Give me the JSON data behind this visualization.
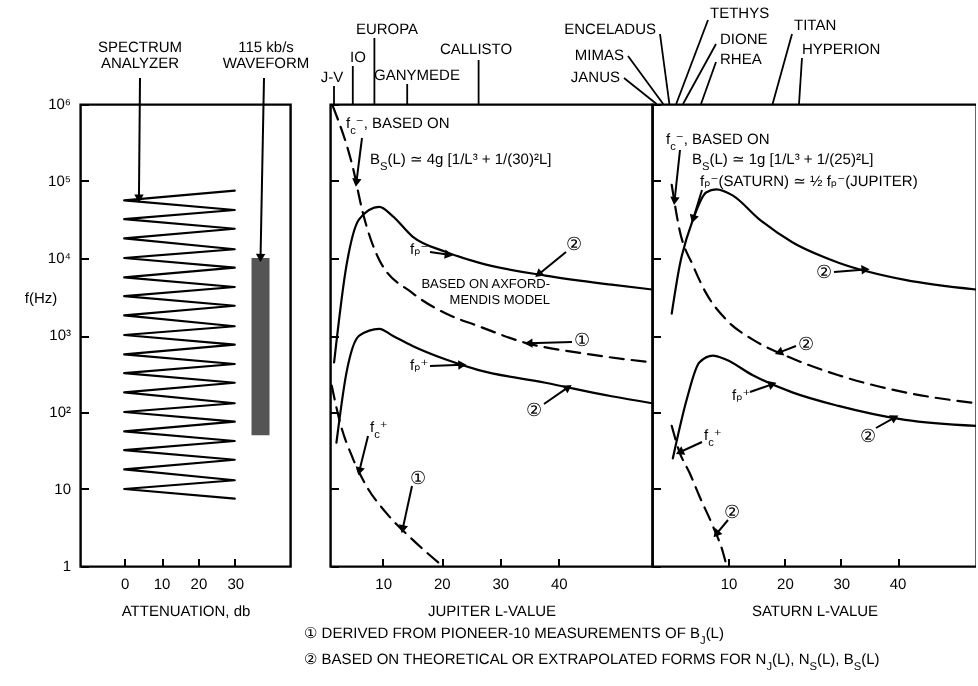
{
  "chart_data": [
    {
      "type": "line",
      "xlabel": "ATTENUATION, db",
      "ylabel": "f(Hz)",
      "xlim": [
        -12,
        45
      ],
      "ylim": [
        1,
        1000000
      ],
      "log": "y",
      "xticks": [
        0,
        10,
        20,
        30
      ],
      "yticks": [
        1,
        10,
        {
          "value": 100,
          "label": "10²"
        },
        {
          "value": 1000,
          "label": "10³"
        },
        {
          "value": 10000,
          "label": "10⁴"
        },
        {
          "value": 100000,
          "label": "10⁵"
        },
        {
          "value": 1000000,
          "label": "10⁶"
        }
      ],
      "series": [
        {
          "type": "line",
          "color": "#000000",
          "line_style": "solid",
          "x": [
            30,
            0,
            30,
            0,
            30,
            0,
            30,
            0,
            30,
            0,
            30,
            0,
            30,
            0,
            30,
            0,
            30,
            0,
            30,
            0,
            30,
            0,
            30,
            0,
            30,
            0,
            30,
            0,
            30,
            0,
            30,
            0,
            30
          ],
          "values": [
            75000,
            56000,
            42000,
            32000,
            24000,
            18000,
            13000,
            10000,
            7500,
            5600,
            4200,
            3200,
            2400,
            1800,
            1300,
            1000,
            750,
            560,
            420,
            320,
            240,
            180,
            130,
            100,
            75,
            56,
            42,
            32,
            24,
            18,
            13,
            10,
            7.5
          ]
        },
        {
          "type": "bar",
          "color": "#555555",
          "x": [
            37
          ],
          "base": [
            50
          ],
          "values": [
            9950
          ]
        }
      ],
      "annotations": [
        {
          "text": "SPECTRUM ANALYZER",
          "x": 4,
          "y": 59000
        },
        {
          "text": "115 kb/s WAVEFORM",
          "x": 37,
          "y": 10000
        }
      ]
    },
    {
      "type": "line",
      "xlabel": "JUPITER L-VALUE",
      "xlim": [
        1,
        56
      ],
      "ylim": [
        1,
        1000000
      ],
      "log": "y",
      "xticks": [
        10,
        20,
        30,
        40
      ],
      "yticks": [
        1,
        10,
        100,
        1000,
        10000,
        100000,
        1000000
      ],
      "tick_labels": "x",
      "series": [
        {
          "color": "#000000",
          "line_style": "dashed",
          "x": [
            1.5,
            4.9,
            6.6,
            9.4,
            15.1,
            20.8,
            26.4,
            34.4,
            43.4,
            56
          ],
          "values": [
            930000,
            150000,
            39000,
            9500,
            3500,
            1900,
            1300,
            790,
            590,
            440
          ]
        },
        {
          "color": "#000000",
          "line_style": "solid",
          "x": [
            1.7,
            3.8,
            6,
            9.4,
            11.7,
            15.1,
            20.8,
            26.4,
            37.8,
            49.1,
            56
          ],
          "values": [
            440,
            7900,
            32000,
            46000,
            35000,
            19000,
            12000,
            8700,
            5900,
            4500,
            3900
          ]
        },
        {
          "color": "#000000",
          "line_style": "solid",
          "x": [
            2.1,
            3.8,
            6,
            9.4,
            11.7,
            15.1,
            20.8,
            26.4,
            37.8,
            49.1,
            56
          ],
          "values": [
            40,
            320,
            980,
            1200,
            980,
            720,
            480,
            350,
            240,
            160,
            130
          ]
        },
        {
          "color": "#000000",
          "line_style": "dashed",
          "x": [
            1.3,
            2.6,
            4.9,
            7.2,
            10.6,
            15.1,
            20.2
          ],
          "values": [
            220,
            79,
            25,
            11,
            4.9,
            2.2,
            1
          ]
        }
      ],
      "annotations": [
        "J-V",
        "IO",
        "EUROPA",
        "GANYMEDE",
        "CALLISTO",
        {
          "text": "f$_{c}$⁻, BASED ON",
          "x": 5.5,
          "y": 95000
        },
        "B$_{S}$(L) ≃ 4g [1/L³ + 1/(30)²L]",
        {
          "text": "fₚ⁻",
          "x": 21.3,
          "y": 11000
        },
        {
          "text": "②",
          "x": 36.6,
          "y": 6100
        },
        "BASED ON AXFORD-MENDIS MODEL",
        {
          "text": "①",
          "x": 34.9,
          "y": 780
        },
        {
          "text": "fₚ⁺",
          "x": 23.6,
          "y": 410
        },
        {
          "text": "②",
          "x": 41.7,
          "y": 210
        },
        {
          "text": "f$_{c}$⁺",
          "x": 6,
          "y": 17
        },
        {
          "text": "①",
          "x": 13.4,
          "y": 3
        },
        "① DERIVED FROM PIONEER-10 MEASUREMENTS OF B$_{J}$(L)",
        "② BASED ON THEORETICAL OR EXTRAPOLATED FORMS FOR N$_{J}$(L), N$_{S}$(L), B$_{S}$(L)"
      ]
    },
    {
      "type": "line",
      "xlabel": "SATURN L-VALUE",
      "xlim": [
        -3.5,
        54
      ],
      "ylim": [
        1,
        1000000
      ],
      "log": "y",
      "xticks": [
        10,
        20,
        30,
        40
      ],
      "yticks": [
        1,
        10,
        100,
        1000,
        10000,
        100000,
        1000000
      ],
      "tick_labels": "x",
      "series": [
        {
          "color": "#000000",
          "line_style": "dashed",
          "x": [
            0,
            1.4,
            3.8,
            6.1,
            9.6,
            14.4,
            20.2,
            29.6,
            41.4,
            54
          ],
          "values": [
            89000,
            23000,
            7900,
            3500,
            1600,
            870,
            540,
            300,
            180,
            130
          ]
        },
        {
          "color": "#000000",
          "line_style": "solid",
          "x": [
            0,
            1.4,
            3.8,
            6.1,
            7.9,
            10.8,
            15.5,
            21.4,
            29.6,
            41.4,
            54
          ],
          "values": [
            1900,
            7900,
            32000,
            71000,
            78000,
            65000,
            32000,
            16000,
            8700,
            5200,
            3900
          ]
        },
        {
          "color": "#000000",
          "line_style": "solid",
          "x": [
            0.2,
            2.6,
            4.9,
            7.3,
            9.6,
            14.4,
            21.4,
            29.6,
            41.4,
            54
          ],
          "values": [
            25,
            140,
            440,
            540,
            480,
            300,
            180,
            120,
            79,
            66
          ]
        },
        {
          "color": "#000000",
          "line_style": "dashed",
          "x": [
            0,
            1.4,
            3.2,
            4.9,
            7.3,
            9.1,
            9.6
          ],
          "values": [
            66,
            30,
            16,
            8.1,
            3.3,
            1.5,
            1.1
          ]
        }
      ],
      "annotations": [
        "JANUS",
        "MIMAS",
        "ENCELADUS",
        "TETHYS",
        "DIONE",
        "RHEA",
        "TITAN",
        "HYPERION",
        {
          "text": "f$_{c}$⁻, BASED ON",
          "x": 0.5,
          "y": 55000
        },
        "B$_{S}$(L) ≃ 1g [1/L³ + 1/(25)²L]",
        {
          "text": "fₚ⁻(SATURN) ≃ ½ fₚ⁻(JUPITER)",
          "x": 3.8,
          "y": 32000
        },
        {
          "text": "②",
          "x": 34.4,
          "y": 7100
        },
        {
          "text": "②",
          "x": 19,
          "y": 590
        },
        {
          "text": "fₚ⁺",
          "x": 17.9,
          "y": 230
        },
        {
          "text": "②",
          "x": 39.6,
          "y": 85
        },
        {
          "text": "f$_{c}$⁺",
          "x": 1.4,
          "y": 30
        },
        {
          "text": "②",
          "x": 7.9,
          "y": 2.6
        }
      ]
    }
  ]
}
